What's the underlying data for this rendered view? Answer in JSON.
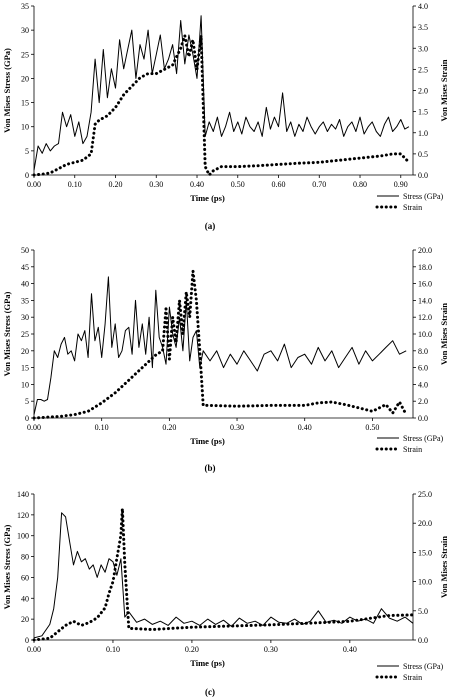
{
  "chart_data": [
    {
      "type": "line",
      "panel_label": "(a)",
      "xlabel": "Time (ps)",
      "ylabel_left": "Von Mises Stress (GPa)",
      "ylabel_right": "Von Mises Strain",
      "xlim": [
        0,
        0.93
      ],
      "ylim_left": [
        0,
        35
      ],
      "ylim_right": [
        0,
        4
      ],
      "x_ticks": [
        "0.00",
        "0.10",
        "0.20",
        "0.30",
        "0.40",
        "0.50",
        "0.60",
        "0.70",
        "0.80",
        "0.90"
      ],
      "x_tick_values": [
        0,
        0.1,
        0.2,
        0.3,
        0.4,
        0.5,
        0.6,
        0.7,
        0.8,
        0.9
      ],
      "y_left_ticks": [
        "0",
        "5",
        "10",
        "15",
        "20",
        "25",
        "30",
        "35"
      ],
      "y_left_tick_values": [
        0,
        5,
        10,
        15,
        20,
        25,
        30,
        35
      ],
      "y_right_ticks": [
        "0.0",
        "0.5",
        "1.0",
        "1.5",
        "2.0",
        "2.5",
        "3.0",
        "3.5",
        "4.0"
      ],
      "y_right_tick_values": [
        0,
        0.5,
        1.0,
        1.5,
        2.0,
        2.5,
        3.0,
        3.5,
        4.0
      ],
      "legend_position": "bottom-right",
      "series": [
        {
          "name": "Stress (GPa)",
          "axis": "left",
          "style": "solid",
          "x": [
            0.0,
            0.01,
            0.02,
            0.03,
            0.04,
            0.05,
            0.06,
            0.07,
            0.08,
            0.09,
            0.1,
            0.11,
            0.12,
            0.13,
            0.14,
            0.15,
            0.16,
            0.17,
            0.18,
            0.19,
            0.2,
            0.21,
            0.22,
            0.23,
            0.24,
            0.25,
            0.26,
            0.27,
            0.28,
            0.29,
            0.3,
            0.31,
            0.32,
            0.33,
            0.34,
            0.35,
            0.36,
            0.37,
            0.38,
            0.39,
            0.4,
            0.41,
            0.42,
            0.43,
            0.44,
            0.45,
            0.46,
            0.47,
            0.48,
            0.49,
            0.5,
            0.51,
            0.52,
            0.53,
            0.54,
            0.55,
            0.56,
            0.57,
            0.58,
            0.59,
            0.6,
            0.61,
            0.62,
            0.63,
            0.64,
            0.65,
            0.66,
            0.67,
            0.68,
            0.69,
            0.7,
            0.71,
            0.72,
            0.73,
            0.74,
            0.75,
            0.76,
            0.77,
            0.78,
            0.79,
            0.8,
            0.81,
            0.82,
            0.83,
            0.84,
            0.85,
            0.86,
            0.87,
            0.88,
            0.89,
            0.9,
            0.91,
            0.92
          ],
          "y": [
            1.0,
            6.0,
            4.5,
            6.5,
            5.0,
            6.0,
            6.5,
            13.0,
            10.0,
            12.5,
            8.0,
            11.0,
            6.5,
            8.0,
            13.0,
            24.0,
            15.0,
            26.0,
            16.0,
            22.0,
            18.0,
            28.0,
            22.0,
            26.0,
            30.0,
            20.0,
            27.0,
            24.0,
            30.0,
            21.0,
            25.0,
            29.0,
            22.0,
            24.0,
            27.0,
            21.0,
            32.0,
            23.0,
            29.0,
            25.0,
            20.0,
            33.0,
            8.0,
            11.0,
            9.0,
            12.0,
            8.0,
            10.0,
            13.0,
            9.0,
            11.0,
            8.5,
            12.0,
            10.0,
            9.0,
            11.0,
            8.0,
            14.0,
            9.5,
            12.0,
            10.0,
            17.0,
            9.0,
            11.0,
            8.0,
            10.5,
            9.0,
            12.0,
            10.0,
            8.5,
            10.0,
            11.0,
            9.0,
            10.5,
            9.5,
            11.5,
            8.0,
            10.0,
            11.0,
            9.0,
            12.0,
            8.5,
            10.0,
            11.0,
            9.0,
            8.0,
            10.5,
            12.0,
            9.0,
            10.0,
            11.5,
            9.5,
            10.0
          ]
        },
        {
          "name": "Strain",
          "axis": "right",
          "style": "dotted",
          "x": [
            0.0,
            0.02,
            0.04,
            0.06,
            0.08,
            0.1,
            0.12,
            0.14,
            0.15,
            0.16,
            0.18,
            0.2,
            0.22,
            0.24,
            0.26,
            0.28,
            0.3,
            0.32,
            0.34,
            0.35,
            0.36,
            0.37,
            0.38,
            0.39,
            0.4,
            0.41,
            0.42,
            0.43,
            0.44,
            0.46,
            0.5,
            0.55,
            0.6,
            0.65,
            0.7,
            0.75,
            0.8,
            0.85,
            0.88,
            0.9,
            0.92
          ],
          "y": [
            0.0,
            0.02,
            0.05,
            0.15,
            0.25,
            0.3,
            0.35,
            0.5,
            1.2,
            1.3,
            1.4,
            1.6,
            1.9,
            2.1,
            2.3,
            2.4,
            2.4,
            2.5,
            2.6,
            2.8,
            3.0,
            3.3,
            2.8,
            3.2,
            2.5,
            3.3,
            0.2,
            0.0,
            0.1,
            0.2,
            0.2,
            0.22,
            0.25,
            0.28,
            0.3,
            0.35,
            0.4,
            0.45,
            0.5,
            0.5,
            0.3
          ]
        }
      ]
    },
    {
      "type": "line",
      "panel_label": "(b)",
      "xlabel": "Time (ps)",
      "ylabel_left": "Von Mises Stress (GPa)",
      "ylabel_right": "Von Mises Strain",
      "xlim": [
        0,
        0.56
      ],
      "ylim_left": [
        0,
        50
      ],
      "ylim_right": [
        0,
        20
      ],
      "x_ticks": [
        "0.00",
        "0.10",
        "0.20",
        "0.30",
        "0.40",
        "0.50"
      ],
      "x_tick_values": [
        0,
        0.1,
        0.2,
        0.3,
        0.4,
        0.5
      ],
      "y_left_ticks": [
        "0",
        "5",
        "10",
        "15",
        "20",
        "25",
        "30",
        "35",
        "40",
        "45",
        "50"
      ],
      "y_left_tick_values": [
        0,
        5,
        10,
        15,
        20,
        25,
        30,
        35,
        40,
        45,
        50
      ],
      "y_right_ticks": [
        "0.0",
        "2.0",
        "4.0",
        "6.0",
        "8.0",
        "10.0",
        "12.0",
        "14.0",
        "16.0",
        "18.0",
        "20.0"
      ],
      "y_right_tick_values": [
        0,
        2,
        4,
        6,
        8,
        10,
        12,
        14,
        16,
        18,
        20
      ],
      "legend_position": "bottom-right",
      "series": [
        {
          "name": "Stress (GPa)",
          "axis": "left",
          "style": "solid",
          "x": [
            0.0,
            0.005,
            0.01,
            0.015,
            0.02,
            0.025,
            0.03,
            0.035,
            0.04,
            0.045,
            0.05,
            0.055,
            0.06,
            0.065,
            0.07,
            0.075,
            0.08,
            0.085,
            0.09,
            0.095,
            0.1,
            0.105,
            0.11,
            0.115,
            0.12,
            0.125,
            0.13,
            0.135,
            0.14,
            0.145,
            0.15,
            0.155,
            0.16,
            0.165,
            0.17,
            0.175,
            0.18,
            0.185,
            0.19,
            0.195,
            0.2,
            0.205,
            0.21,
            0.215,
            0.22,
            0.225,
            0.23,
            0.235,
            0.24,
            0.245,
            0.25,
            0.26,
            0.27,
            0.28,
            0.29,
            0.3,
            0.31,
            0.32,
            0.33,
            0.34,
            0.35,
            0.36,
            0.37,
            0.38,
            0.39,
            0.4,
            0.41,
            0.42,
            0.43,
            0.44,
            0.45,
            0.46,
            0.47,
            0.48,
            0.49,
            0.5,
            0.51,
            0.52,
            0.53,
            0.54,
            0.55
          ],
          "y": [
            1.0,
            5.5,
            5.5,
            5.0,
            5.5,
            12.0,
            20.0,
            18.0,
            22.0,
            24.0,
            19.0,
            20.0,
            17.0,
            25.0,
            23.0,
            26.0,
            18.0,
            37.0,
            23.0,
            27.0,
            18.0,
            28.0,
            42.0,
            21.0,
            28.0,
            18.0,
            20.0,
            26.0,
            27.0,
            19.0,
            35.0,
            21.0,
            28.0,
            19.0,
            30.0,
            15.0,
            38.0,
            24.0,
            21.0,
            16.0,
            33.0,
            25.0,
            21.0,
            30.0,
            20.0,
            35.0,
            17.0,
            24.0,
            26.0,
            15.0,
            20.0,
            17.0,
            20.0,
            15.0,
            19.0,
            16.0,
            20.0,
            17.0,
            14.0,
            19.0,
            20.0,
            17.0,
            22.0,
            15.0,
            18.0,
            19.0,
            16.0,
            21.0,
            17.0,
            20.0,
            15.0,
            18.0,
            21.0,
            16.0,
            20.0,
            17.0,
            19.0,
            21.0,
            23.0,
            19.0,
            20.0
          ]
        },
        {
          "name": "Strain",
          "axis": "right",
          "style": "dotted",
          "x": [
            0.0,
            0.02,
            0.04,
            0.06,
            0.08,
            0.1,
            0.12,
            0.14,
            0.16,
            0.18,
            0.19,
            0.195,
            0.2,
            0.205,
            0.21,
            0.215,
            0.22,
            0.225,
            0.23,
            0.235,
            0.24,
            0.245,
            0.25,
            0.26,
            0.3,
            0.35,
            0.4,
            0.42,
            0.44,
            0.46,
            0.48,
            0.5,
            0.52,
            0.53,
            0.54,
            0.55
          ],
          "y": [
            0.0,
            0.1,
            0.2,
            0.4,
            0.8,
            1.8,
            3.0,
            4.5,
            6.0,
            7.5,
            8.0,
            13.0,
            7.0,
            12.0,
            9.0,
            14.0,
            10.0,
            15.0,
            12.0,
            17.5,
            14.0,
            8.0,
            1.5,
            1.5,
            1.4,
            1.5,
            1.5,
            1.8,
            1.9,
            1.6,
            1.2,
            0.8,
            1.6,
            0.6,
            1.9,
            0.4
          ]
        }
      ]
    },
    {
      "type": "line",
      "panel_label": "(c)",
      "xlabel": "Time (ps)",
      "ylabel_left": "Von Mises Stress (GPa)",
      "ylabel_right": "Von Mises Strain",
      "xlim": [
        0,
        0.48
      ],
      "ylim_left": [
        0,
        140
      ],
      "ylim_right": [
        0,
        25
      ],
      "x_ticks": [
        "0.00",
        "0.10",
        "0.20",
        "0.30",
        "0.40"
      ],
      "x_tick_values": [
        0,
        0.1,
        0.2,
        0.3,
        0.4
      ],
      "y_left_ticks": [
        "0",
        "20",
        "40",
        "60",
        "80",
        "100",
        "120",
        "140"
      ],
      "y_left_tick_values": [
        0,
        20,
        40,
        60,
        80,
        100,
        120,
        140
      ],
      "y_right_ticks": [
        "0.0",
        "5.0",
        "10.0",
        "15.0",
        "20.0",
        "25.0"
      ],
      "y_right_tick_values": [
        0,
        5,
        10,
        15,
        20,
        25
      ],
      "legend_position": "bottom-right",
      "series": [
        {
          "name": "Stress (GPa)",
          "axis": "left",
          "style": "solid",
          "x": [
            0.0,
            0.01,
            0.02,
            0.025,
            0.03,
            0.035,
            0.04,
            0.045,
            0.05,
            0.055,
            0.06,
            0.065,
            0.07,
            0.075,
            0.08,
            0.085,
            0.09,
            0.095,
            0.1,
            0.105,
            0.11,
            0.115,
            0.12,
            0.13,
            0.14,
            0.15,
            0.16,
            0.17,
            0.18,
            0.19,
            0.2,
            0.21,
            0.22,
            0.23,
            0.24,
            0.25,
            0.26,
            0.27,
            0.28,
            0.29,
            0.3,
            0.31,
            0.32,
            0.33,
            0.34,
            0.35,
            0.36,
            0.37,
            0.38,
            0.39,
            0.4,
            0.41,
            0.42,
            0.43,
            0.44,
            0.45,
            0.46,
            0.47,
            0.48
          ],
          "y": [
            2.0,
            4.0,
            15.0,
            30.0,
            60.0,
            122.0,
            118.0,
            95.0,
            72.0,
            85.0,
            75.0,
            78.0,
            68.0,
            72.0,
            60.0,
            72.0,
            65.0,
            78.0,
            75.0,
            62.0,
            78.0,
            22.0,
            27.0,
            17.0,
            20.0,
            15.0,
            18.0,
            14.0,
            22.0,
            16.0,
            18.0,
            14.0,
            20.0,
            15.0,
            19.0,
            13.0,
            21.0,
            16.0,
            18.0,
            14.0,
            22.0,
            17.0,
            16.0,
            20.0,
            15.0,
            18.0,
            28.0,
            17.0,
            19.0,
            16.0,
            22.0,
            18.0,
            20.0,
            16.0,
            30.0,
            21.0,
            18.0,
            22.0,
            16.0
          ]
        },
        {
          "name": "Strain",
          "axis": "right",
          "style": "dotted",
          "x": [
            0.0,
            0.02,
            0.04,
            0.05,
            0.06,
            0.07,
            0.08,
            0.09,
            0.095,
            0.1,
            0.105,
            0.11,
            0.112,
            0.115,
            0.12,
            0.15,
            0.2,
            0.25,
            0.3,
            0.35,
            0.4,
            0.45,
            0.48
          ],
          "y": [
            0.0,
            0.3,
            2.5,
            3.2,
            2.5,
            3.0,
            3.8,
            5.5,
            8.0,
            10.0,
            14.0,
            18.0,
            22.5,
            13.0,
            2.0,
            1.8,
            2.2,
            2.4,
            2.6,
            2.9,
            3.2,
            4.2,
            4.3
          ]
        }
      ]
    }
  ]
}
